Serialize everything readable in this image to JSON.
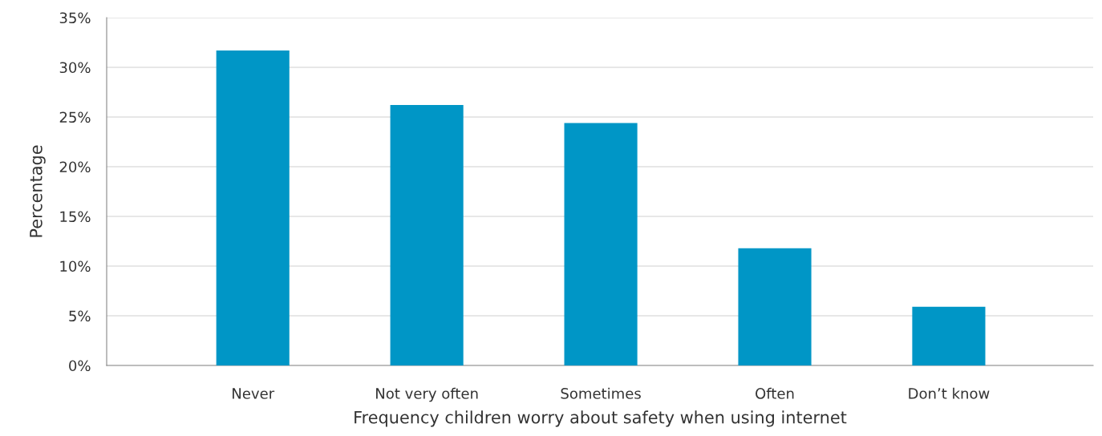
{
  "chart_data": {
    "type": "bar",
    "xlabel": "Frequency children worry about safety when using internet",
    "ylabel": "Percentage",
    "categories": [
      "Never",
      "Not very often",
      "Sometimes",
      "Often",
      "Don’t know"
    ],
    "values": [
      31.7,
      26.2,
      24.4,
      11.8,
      5.9
    ],
    "color": "#0096c6",
    "ylim": [
      0,
      35
    ],
    "yticks": [
      {
        "value": 0,
        "label": "0%"
      },
      {
        "value": 5,
        "label": "5%"
      },
      {
        "value": 10,
        "label": "10%"
      },
      {
        "value": 15,
        "label": "15%"
      },
      {
        "value": 20,
        "label": "20%"
      },
      {
        "value": 25,
        "label": "25%"
      },
      {
        "value": 30,
        "label": "30%"
      },
      {
        "value": 35,
        "label": "35%"
      }
    ],
    "grid": "y",
    "legend": false
  }
}
